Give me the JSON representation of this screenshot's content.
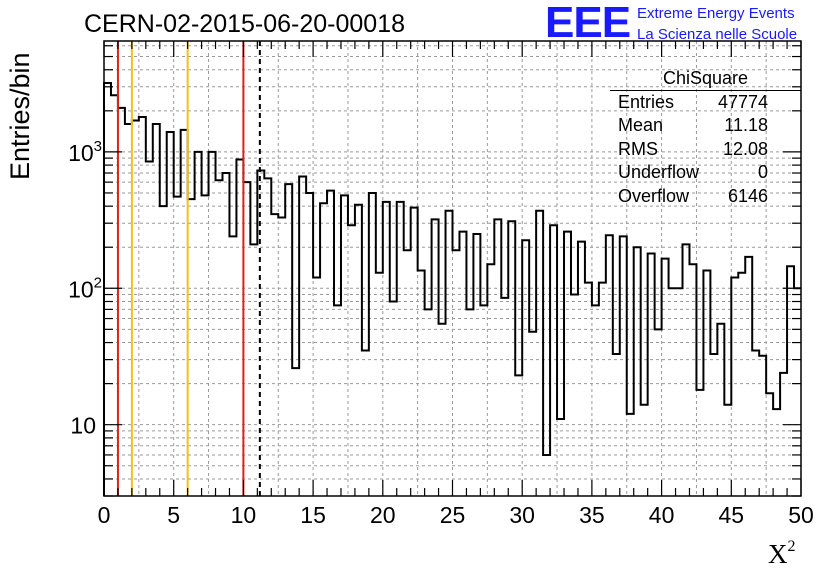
{
  "header": {
    "run_title": "CERN-02-2015-06-20-00018",
    "logo_text": "EEE",
    "logo_line1": "Extreme Energy Events",
    "logo_line2": "La Scienza nelle Scuole"
  },
  "stats_box": {
    "title": "ChiSquare",
    "rows": [
      {
        "label": "Entries",
        "value": "47774"
      },
      {
        "label": "Mean",
        "value": "11.18"
      },
      {
        "label": "RMS",
        "value": "12.08"
      },
      {
        "label": "Underflow",
        "value": "0"
      },
      {
        "label": "Overflow",
        "value": "6146"
      }
    ]
  },
  "chart_data": {
    "type": "histogram",
    "xlabel_base": "X",
    "xlabel_exp": "2",
    "ylabel": "Entries/bin",
    "xlim": [
      0,
      50
    ],
    "ylim": [
      3,
      6500
    ],
    "yscale": "log",
    "bin_width": 0.5,
    "x_tick_labels": [
      "0",
      "5",
      "10",
      "15",
      "20",
      "25",
      "30",
      "35",
      "40",
      "45",
      "50"
    ],
    "y_tick_labels": [
      {
        "value": 10,
        "base": "10",
        "exp": ""
      },
      {
        "value": 100,
        "base": "10",
        "exp": "2"
      },
      {
        "value": 1000,
        "base": "10",
        "exp": "3"
      }
    ],
    "bin_values": [
      3200,
      2600,
      2100,
      1600,
      1700,
      1800,
      850,
      1600,
      400,
      1400,
      470,
      1450,
      450,
      1000,
      480,
      1000,
      620,
      700,
      240,
      880,
      600,
      210,
      730,
      640,
      350,
      330,
      580,
      26,
      660,
      500,
      120,
      420,
      520,
      75,
      480,
      290,
      410,
      35,
      500,
      130,
      430,
      80,
      430,
      190,
      390,
      135,
      70,
      320,
      55,
      370,
      190,
      260,
      70,
      250,
      75,
      150,
      320,
      85,
      310,
      23,
      225,
      48,
      370,
      6,
      290,
      11,
      260,
      90,
      220,
      110,
      75,
      110,
      245,
      33,
      240,
      12,
      200,
      14,
      180,
      50,
      165,
      100,
      100,
      210,
      150,
      18,
      135,
      33,
      55,
      14,
      120,
      130,
      170,
      35,
      32,
      17,
      13,
      24,
      145,
      100,
      95
    ],
    "vertical_lines": [
      {
        "x": 1,
        "color": "#e0201c",
        "style": "solid"
      },
      {
        "x": 2,
        "color": "#f0c020",
        "style": "solid"
      },
      {
        "x": 6,
        "color": "#f0c020",
        "style": "solid"
      },
      {
        "x": 10,
        "color": "#e0201c",
        "style": "solid"
      },
      {
        "x": 11.18,
        "color": "#000000",
        "style": "dashed"
      }
    ]
  }
}
